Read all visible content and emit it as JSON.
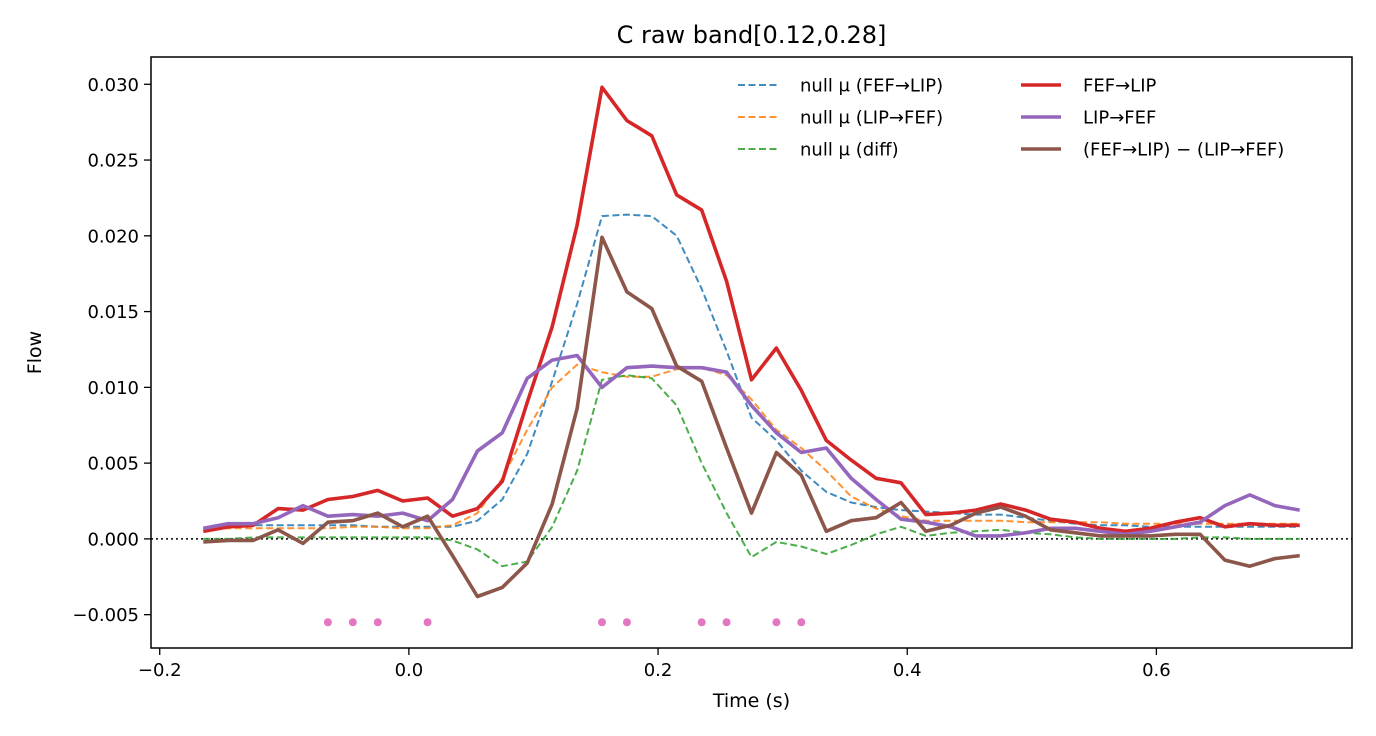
{
  "chart_data": {
    "type": "line",
    "title": "C raw   band[0.12,0.28]",
    "xlabel": "Time (s)",
    "ylabel": "Flow",
    "xlim": [
      -0.207,
      0.757
    ],
    "ylim": [
      -0.0072,
      0.0318
    ],
    "xticks": [
      -0.2,
      0.0,
      0.2,
      0.4,
      0.6
    ],
    "xtick_labels": [
      "−0.2",
      "0.0",
      "0.2",
      "0.4",
      "0.6"
    ],
    "yticks": [
      -0.005,
      0.0,
      0.005,
      0.01,
      0.015,
      0.02,
      0.025,
      0.03
    ],
    "ytick_labels": [
      "−0.005",
      "0.000",
      "0.005",
      "0.010",
      "0.015",
      "0.020",
      "0.025",
      "0.030"
    ],
    "grid": false,
    "zero_line": true,
    "legend_placement": "top-right",
    "x": [
      -0.165,
      -0.145,
      -0.125,
      -0.105,
      -0.085,
      -0.065,
      -0.045,
      -0.025,
      -0.005,
      0.015,
      0.035,
      0.055,
      0.075,
      0.095,
      0.115,
      0.135,
      0.155,
      0.175,
      0.195,
      0.215,
      0.235,
      0.255,
      0.275,
      0.295,
      0.315,
      0.335,
      0.355,
      0.375,
      0.395,
      0.415,
      0.435,
      0.455,
      0.475,
      0.495,
      0.515,
      0.535,
      0.555,
      0.575,
      0.595,
      0.615,
      0.635,
      0.655,
      0.675,
      0.695,
      0.715
    ],
    "series": [
      {
        "name": "null μ (FEF→LIP)",
        "color": "#1f77b4",
        "style": "dashed",
        "values": [
          0.0007,
          0.0009,
          0.0009,
          0.0009,
          0.0009,
          0.0009,
          0.0009,
          0.0008,
          0.0008,
          0.0008,
          0.0008,
          0.0012,
          0.0026,
          0.0056,
          0.0104,
          0.0155,
          0.0213,
          0.0214,
          0.0213,
          0.02,
          0.0165,
          0.0124,
          0.008,
          0.0065,
          0.0045,
          0.0031,
          0.0024,
          0.0021,
          0.0019,
          0.0018,
          0.0017,
          0.0016,
          0.0016,
          0.0014,
          0.0012,
          0.001,
          0.0009,
          0.0009,
          0.0008,
          0.0008,
          0.0008,
          0.0008,
          0.0008,
          0.0008,
          0.0008
        ]
      },
      {
        "name": "null μ (LIP→FEF)",
        "color": "#ff7f0e",
        "style": "dashed",
        "values": [
          0.0006,
          0.0007,
          0.0007,
          0.0007,
          0.0007,
          0.0007,
          0.0008,
          0.0008,
          0.0007,
          0.0007,
          0.0009,
          0.0017,
          0.004,
          0.0072,
          0.01,
          0.0115,
          0.011,
          0.0107,
          0.0107,
          0.0112,
          0.0113,
          0.0108,
          0.0092,
          0.0072,
          0.006,
          0.0045,
          0.0028,
          0.002,
          0.0015,
          0.0012,
          0.0012,
          0.0012,
          0.0012,
          0.0011,
          0.0011,
          0.0011,
          0.0011,
          0.001,
          0.001,
          0.001,
          0.001,
          0.001,
          0.001,
          0.001,
          0.001
        ]
      },
      {
        "name": "null μ (diff)",
        "color": "#2ca02c",
        "style": "dashed",
        "values": [
          0.0,
          0.0,
          0.0001,
          0.0001,
          0.0001,
          0.0001,
          0.0001,
          0.0001,
          0.0001,
          0.0001,
          -0.0001,
          -0.0007,
          -0.0018,
          -0.0015,
          0.0008,
          0.0045,
          0.0105,
          0.0108,
          0.0106,
          0.0088,
          0.005,
          0.0017,
          -0.0012,
          -0.0002,
          -0.0005,
          -0.001,
          -0.0004,
          0.0003,
          0.0008,
          0.0002,
          0.0004,
          0.0005,
          0.0006,
          0.0004,
          0.0003,
          0.0001,
          0.0,
          0.0,
          0.0,
          0.0,
          0.0001,
          0.0001,
          0.0,
          0.0,
          0.0
        ]
      },
      {
        "name": "FEF→LIP",
        "color": "#d62728",
        "style": "solid",
        "values": [
          0.0005,
          0.0008,
          0.0009,
          0.002,
          0.0019,
          0.0026,
          0.0028,
          0.0032,
          0.0025,
          0.0027,
          0.0015,
          0.002,
          0.0038,
          0.009,
          0.014,
          0.0207,
          0.0298,
          0.0276,
          0.0266,
          0.0227,
          0.0217,
          0.017,
          0.0105,
          0.0126,
          0.0098,
          0.0065,
          0.0052,
          0.004,
          0.0037,
          0.0016,
          0.0017,
          0.0019,
          0.0023,
          0.0019,
          0.0013,
          0.0011,
          0.0007,
          0.0005,
          0.0007,
          0.0011,
          0.0014,
          0.0008,
          0.001,
          0.0009,
          0.0009
        ]
      },
      {
        "name": "LIP→FEF",
        "color": "#9467bd",
        "style": "solid",
        "values": [
          0.0007,
          0.001,
          0.001,
          0.0014,
          0.0022,
          0.0015,
          0.0016,
          0.0015,
          0.0017,
          0.0012,
          0.0026,
          0.0058,
          0.007,
          0.0106,
          0.0118,
          0.0121,
          0.01,
          0.0113,
          0.0114,
          0.0113,
          0.0113,
          0.011,
          0.0088,
          0.007,
          0.0057,
          0.006,
          0.004,
          0.0026,
          0.0013,
          0.0011,
          0.0008,
          0.0002,
          0.0002,
          0.0004,
          0.0007,
          0.0007,
          0.0005,
          0.0003,
          0.0005,
          0.0008,
          0.0011,
          0.0022,
          0.0029,
          0.0022,
          0.0019
        ]
      },
      {
        "name": "(FEF→LIP) − (LIP→FEF)",
        "color": "#8c564b",
        "style": "solid",
        "values": [
          -0.0002,
          -0.0001,
          -0.0001,
          0.0006,
          -0.0003,
          0.0011,
          0.0012,
          0.0017,
          0.0008,
          0.0015,
          -0.0011,
          -0.0038,
          -0.0032,
          -0.0016,
          0.0023,
          0.0086,
          0.0199,
          0.0163,
          0.0152,
          0.0114,
          0.0104,
          0.006,
          0.0017,
          0.0057,
          0.0042,
          0.0005,
          0.0012,
          0.0014,
          0.0024,
          0.0005,
          0.0009,
          0.0017,
          0.0021,
          0.0015,
          0.0006,
          0.0004,
          0.0002,
          0.0002,
          0.0002,
          0.0003,
          0.0003,
          -0.0014,
          -0.0018,
          -0.0013,
          -0.0011
        ]
      }
    ],
    "significance_markers": {
      "color": "#e377c2",
      "y": -0.0055,
      "x": [
        -0.065,
        -0.045,
        -0.025,
        0.015,
        0.155,
        0.175,
        0.235,
        0.255,
        0.295,
        0.315
      ]
    },
    "legend": [
      {
        "label": "null μ (FEF→LIP)",
        "color": "#1f77b4",
        "style": "dashed"
      },
      {
        "label": "null μ (LIP→FEF)",
        "color": "#ff7f0e",
        "style": "dashed"
      },
      {
        "label": "null μ (diff)",
        "color": "#2ca02c",
        "style": "dashed"
      },
      {
        "label": "FEF→LIP",
        "color": "#d62728",
        "style": "solid"
      },
      {
        "label": "LIP→FEF",
        "color": "#9467bd",
        "style": "solid"
      },
      {
        "label": "(FEF→LIP) − (LIP→FEF)",
        "color": "#8c564b",
        "style": "solid"
      }
    ]
  }
}
